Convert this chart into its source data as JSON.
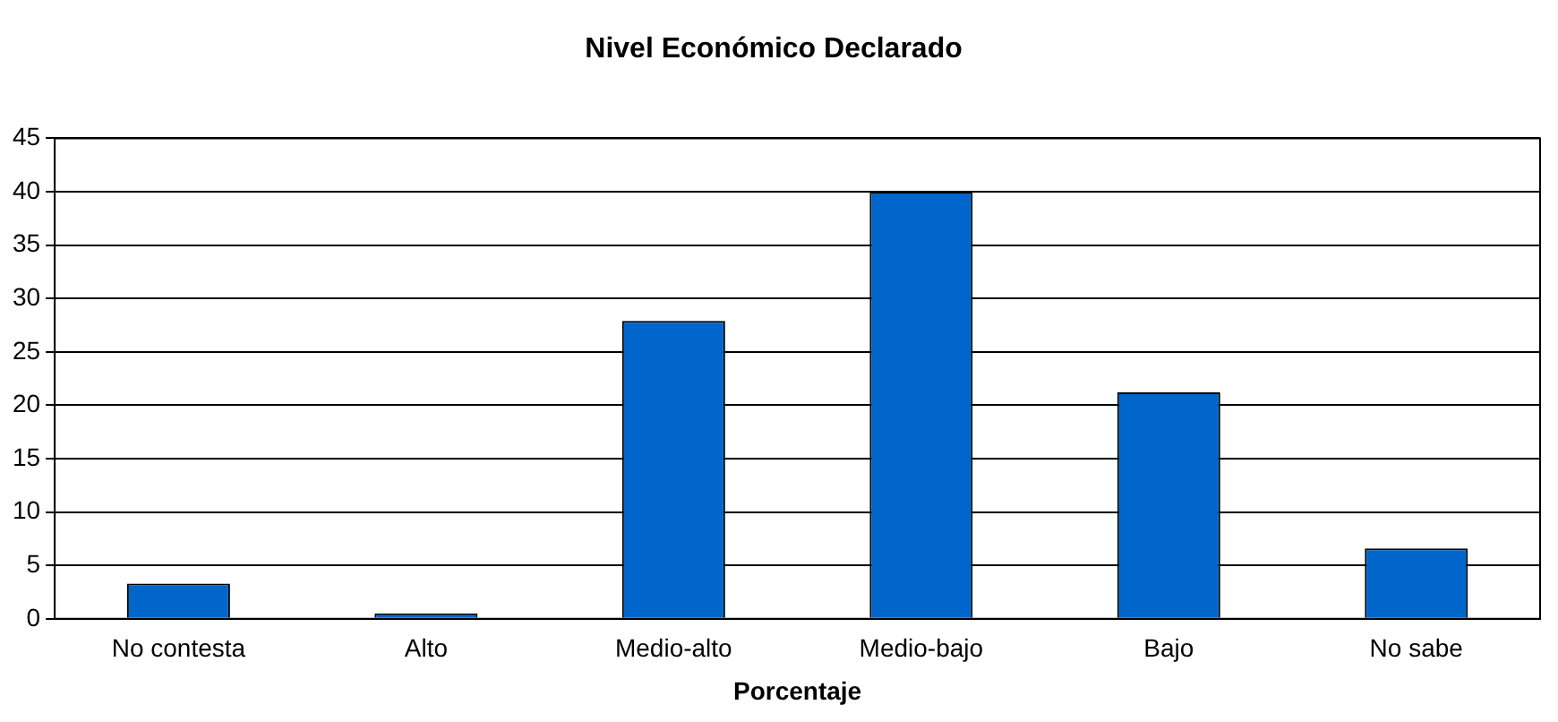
{
  "chart_data": {
    "type": "bar",
    "title": "Nivel Económico Declarado",
    "xlabel": "Porcentaje",
    "categories": [
      "No contesta",
      "Alto",
      "Medio-alto",
      "Medio-bajo",
      "Bajo",
      "No sabe"
    ],
    "values": [
      3.3,
      0.5,
      27.9,
      40,
      21.2,
      6.6
    ],
    "color": "#0066cc",
    "ylim": [
      0,
      45
    ],
    "yticks": [
      0,
      5,
      10,
      15,
      20,
      25,
      30,
      35,
      40,
      45
    ],
    "grid": "y"
  }
}
